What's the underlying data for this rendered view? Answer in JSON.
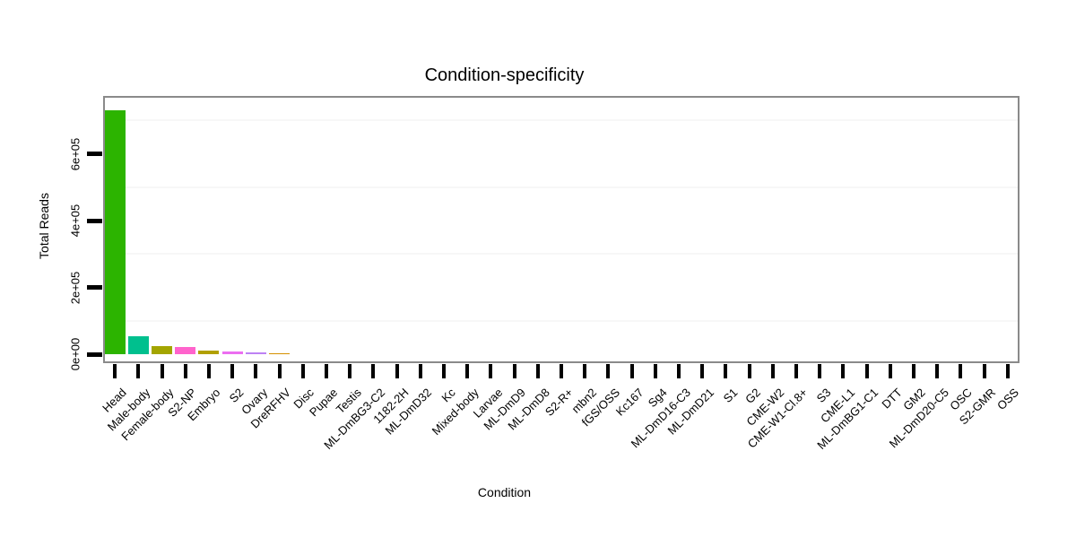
{
  "title": "Condition-specificity",
  "chart_data": {
    "type": "bar",
    "title": "Condition-specificity",
    "xlabel": "Condition",
    "ylabel": "Total Reads",
    "ylim": [
      0,
      770000
    ],
    "grid": "minor-horizontal-only",
    "legend": "none",
    "y_ticks": {
      "labels": [
        "0e+00",
        "2e+05",
        "4e+05",
        "6e+05"
      ],
      "values": [
        0,
        200000,
        400000,
        600000
      ]
    },
    "minor_gridline_values": [
      100000,
      300000,
      500000,
      700000
    ],
    "categories": [
      "Head",
      "Male-body",
      "Female-body",
      "S2-NP",
      "Embryo",
      "S2",
      "Ovary",
      "DreRFHV",
      "Disc",
      "Pupae",
      "Testis",
      "ML-DmBG3-C2",
      "1182-2H",
      "ML-DmD32",
      "Kc",
      "Mixed-body",
      "Larvae",
      "ML-DmD9",
      "ML-DmD8",
      "S2-R+",
      "mbn2",
      "fGS/OSS",
      "Kc167",
      "Sg4",
      "ML-DmD16-C3",
      "ML-DmD21",
      "S1",
      "G2",
      "CME-W2",
      "CME-W1-Cl.8+",
      "S3",
      "CME-L1",
      "ML-DmBG1-C1",
      "DTT",
      "GM2",
      "ML-DmD20-C5",
      "OSC",
      "S2-GMR",
      "OSS"
    ],
    "values": [
      730000,
      54000,
      23000,
      20500,
      11500,
      7000,
      6200,
      3000,
      0,
      0,
      0,
      0,
      0,
      0,
      0,
      0,
      0,
      0,
      0,
      0,
      0,
      0,
      0,
      0,
      0,
      0,
      0,
      0,
      0,
      0,
      0,
      0,
      0,
      0,
      0,
      0,
      0,
      0,
      0
    ],
    "bar_colors": [
      "#2CB400",
      "#00C08E",
      "#A3A500",
      "#FF63CC",
      "#B1A000",
      "#EC6EF1",
      "#BD82F4",
      "#D59100",
      "#cccccc",
      "#cccccc",
      "#cccccc",
      "#cccccc",
      "#cccccc",
      "#cccccc",
      "#cccccc",
      "#cccccc",
      "#cccccc",
      "#cccccc",
      "#cccccc",
      "#cccccc",
      "#cccccc",
      "#cccccc",
      "#cccccc",
      "#cccccc",
      "#cccccc",
      "#cccccc",
      "#cccccc",
      "#cccccc",
      "#cccccc",
      "#cccccc",
      "#cccccc",
      "#cccccc",
      "#cccccc",
      "#cccccc",
      "#cccccc",
      "#cccccc",
      "#cccccc",
      "#cccccc",
      "#cccccc"
    ]
  },
  "colors": {
    "panel_border": "#8a8a8a",
    "tick": "#000000",
    "minor_gridline": "#f7f7f7",
    "text": "#000000",
    "background": "#ffffff"
  }
}
